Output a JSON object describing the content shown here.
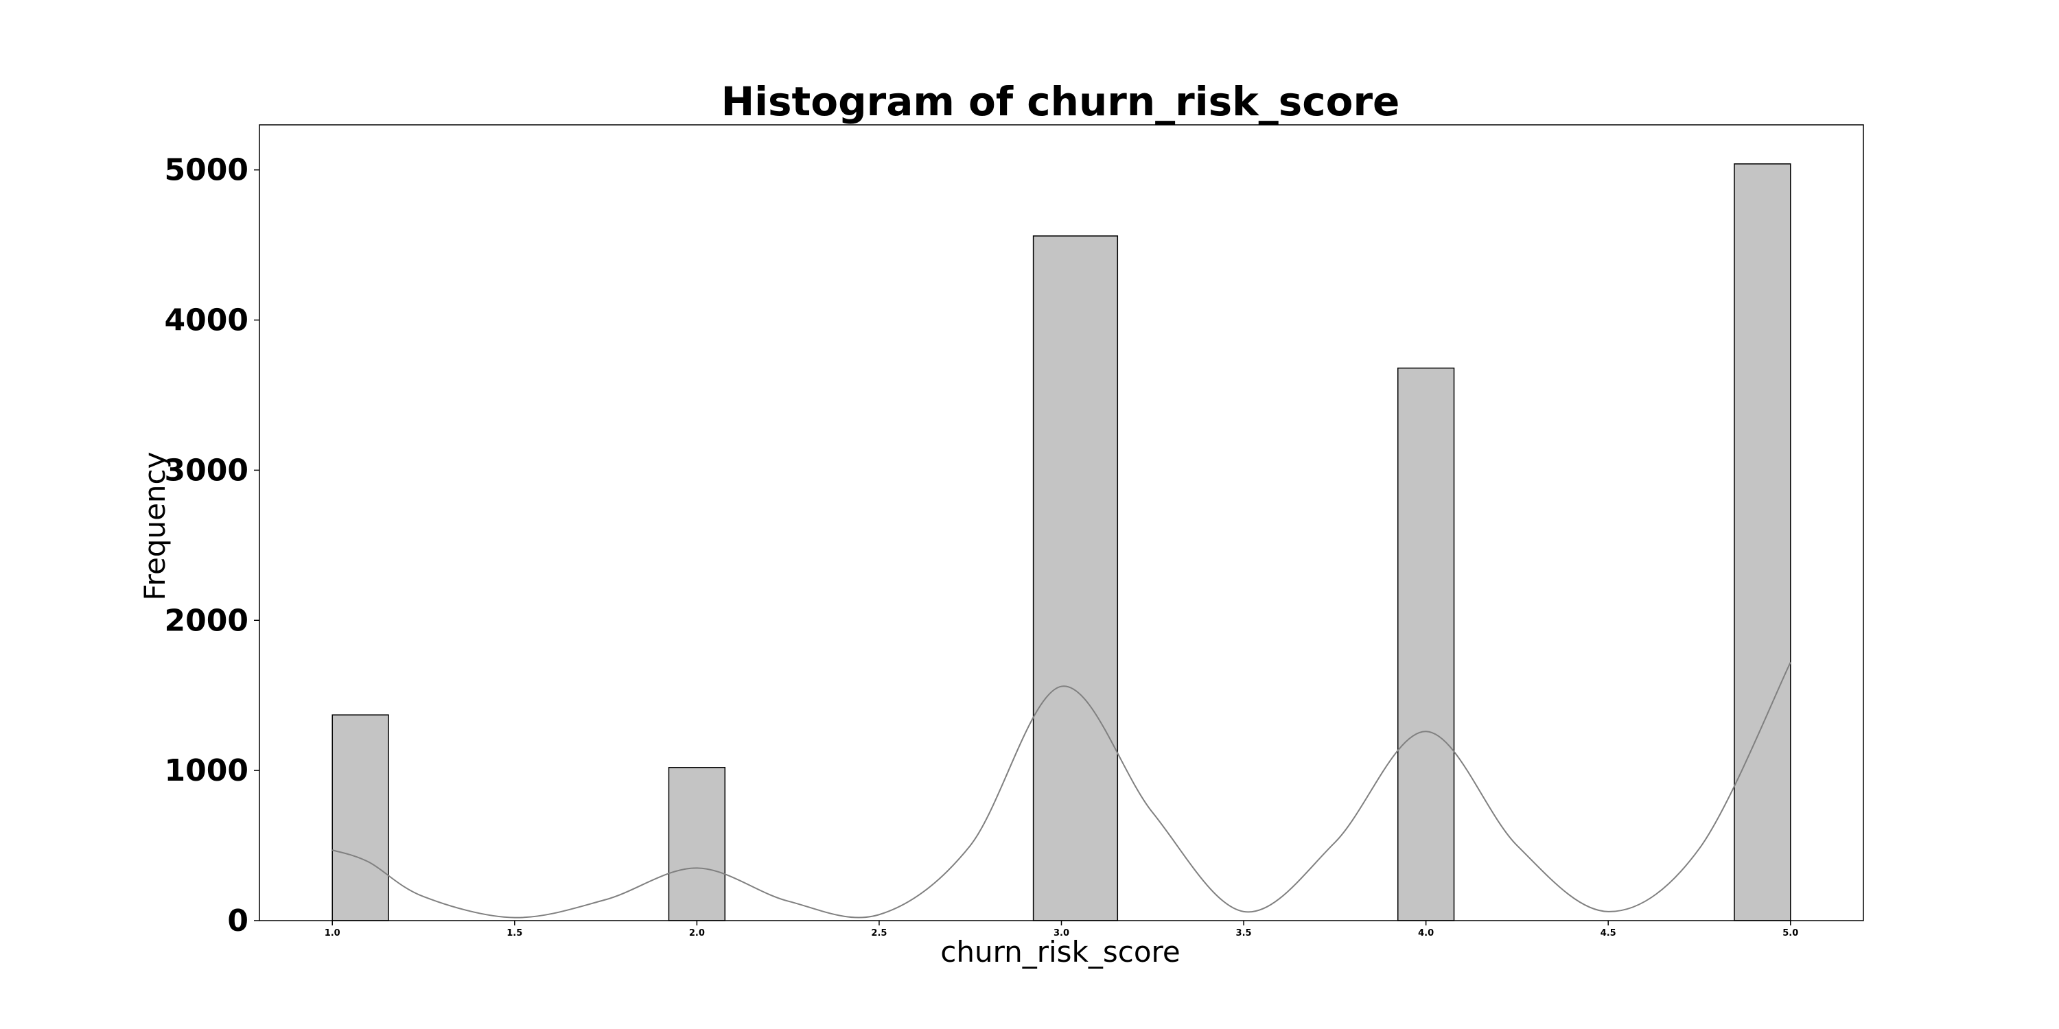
{
  "chart_data": {
    "type": "bar",
    "title": "Histogram of churn_risk_score",
    "xlabel": "churn_risk_score",
    "ylabel": "Frequency",
    "xlim": [
      0.8,
      5.2
    ],
    "ylim": [
      0,
      5300
    ],
    "x_ticks": [
      "1.0",
      "1.5",
      "2.0",
      "2.5",
      "3.0",
      "3.5",
      "4.0",
      "4.5",
      "5.0"
    ],
    "y_ticks": [
      "0",
      "1000",
      "2000",
      "3000",
      "4000",
      "5000"
    ],
    "grid": false,
    "bar_color": "#c4c4c4",
    "bar_edge_color": "#000000",
    "kde_color": "#808080",
    "bins": [
      {
        "x_start": 1.0,
        "x_end": 1.154,
        "count": 1370
      },
      {
        "x_start": 1.923,
        "x_end": 2.077,
        "count": 1020
      },
      {
        "x_start": 2.923,
        "x_end": 3.154,
        "count": 4560
      },
      {
        "x_start": 3.923,
        "x_end": 4.077,
        "count": 3680
      },
      {
        "x_start": 4.846,
        "x_end": 5.0,
        "count": 5040
      }
    ],
    "kde": {
      "x": [
        1.0,
        1.1,
        1.25,
        1.5,
        1.75,
        2.0,
        2.25,
        2.5,
        2.75,
        3.0,
        3.25,
        3.5,
        3.75,
        4.0,
        4.25,
        4.5,
        4.75,
        5.0
      ],
      "y": [
        470,
        390,
        160,
        20,
        140,
        350,
        130,
        40,
        500,
        1560,
        720,
        60,
        520,
        1260,
        500,
        60,
        480,
        1720
      ]
    }
  }
}
